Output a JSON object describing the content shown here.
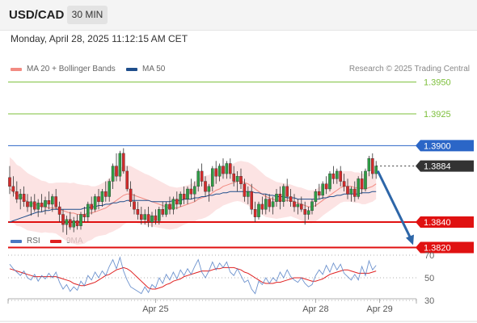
{
  "header": {
    "symbol": "USD/CAD",
    "timeframe": "30 MIN"
  },
  "datetime": "Monday, April 28, 2025 11:12:15 AM CET",
  "legend": {
    "main": [
      {
        "label": "MA 20 + Bollinger Bands",
        "color": "#f28b82"
      },
      {
        "label": "MA 50",
        "color": "#1f4e8c"
      }
    ],
    "rsi": [
      {
        "label": "RSI",
        "color": "#4a78c2"
      },
      {
        "label": "9MA",
        "color": "#e02020"
      }
    ]
  },
  "credit": "Research © 2025 Trading Central",
  "colors": {
    "up": "#2e9e45",
    "down": "#d42a2a",
    "resistance": "#2b66c7",
    "support": "#e01111",
    "target": "#7cbf3a",
    "current": "#333333",
    "arrow": "#2d66a8",
    "band": "#fbd9d9"
  },
  "chart_data": [
    {
      "type": "candlestick",
      "ylim": [
        1.38,
        1.3965
      ],
      "levels": [
        {
          "value": 1.395,
          "label": "1.3950",
          "kind": "target"
        },
        {
          "value": 1.3925,
          "label": "1.3925",
          "kind": "target"
        },
        {
          "value": 1.39,
          "label": "1.3900",
          "kind": "resistance"
        },
        {
          "value": 1.3884,
          "label": "1.3884",
          "kind": "current"
        },
        {
          "value": 1.384,
          "label": "1.3840",
          "kind": "support"
        },
        {
          "value": 1.382,
          "label": "1.3820",
          "kind": "support"
        }
      ],
      "x_ticks": [
        {
          "index": 41,
          "label": "Apr 25"
        },
        {
          "index": 86,
          "label": "Apr 28"
        },
        {
          "index": 104,
          "label": "Apr 29"
        }
      ],
      "candles": [
        [
          1.3875,
          1.3884,
          1.3862,
          1.3868
        ],
        [
          1.3868,
          1.3876,
          1.386,
          1.3864
        ],
        [
          1.3864,
          1.3872,
          1.3855,
          1.3858
        ],
        [
          1.3858,
          1.3866,
          1.385,
          1.3862
        ],
        [
          1.3862,
          1.3868,
          1.3852,
          1.3856
        ],
        [
          1.3856,
          1.3862,
          1.3848,
          1.3852
        ],
        [
          1.3852,
          1.386,
          1.3845,
          1.3856
        ],
        [
          1.3856,
          1.3862,
          1.3848,
          1.385
        ],
        [
          1.385,
          1.3858,
          1.3844,
          1.3855
        ],
        [
          1.3855,
          1.3862,
          1.3848,
          1.3852
        ],
        [
          1.3852,
          1.386,
          1.3846,
          1.3857
        ],
        [
          1.3857,
          1.3864,
          1.385,
          1.3854
        ],
        [
          1.3854,
          1.3862,
          1.3848,
          1.386
        ],
        [
          1.386,
          1.3866,
          1.385,
          1.3852
        ],
        [
          1.3852,
          1.3856,
          1.384,
          1.3846
        ],
        [
          1.3846,
          1.385,
          1.3832,
          1.3838
        ],
        [
          1.3838,
          1.3845,
          1.383,
          1.3842
        ],
        [
          1.3842,
          1.3848,
          1.3834,
          1.3836
        ],
        [
          1.3836,
          1.3844,
          1.3832,
          1.3841
        ],
        [
          1.3841,
          1.3846,
          1.3834,
          1.3837
        ],
        [
          1.3837,
          1.3848,
          1.3834,
          1.3846
        ],
        [
          1.3846,
          1.3852,
          1.384,
          1.3844
        ],
        [
          1.3844,
          1.3856,
          1.384,
          1.3854
        ],
        [
          1.3854,
          1.386,
          1.3846,
          1.385
        ],
        [
          1.385,
          1.3862,
          1.3848,
          1.386
        ],
        [
          1.386,
          1.3866,
          1.385,
          1.3856
        ],
        [
          1.3856,
          1.3866,
          1.3852,
          1.3864
        ],
        [
          1.3864,
          1.3872,
          1.3856,
          1.386
        ],
        [
          1.386,
          1.3874,
          1.3856,
          1.3872
        ],
        [
          1.3872,
          1.3886,
          1.3866,
          1.3884
        ],
        [
          1.3884,
          1.3894,
          1.3872,
          1.3876
        ],
        [
          1.3876,
          1.3896,
          1.3872,
          1.3894
        ],
        [
          1.3894,
          1.3898,
          1.3878,
          1.388
        ],
        [
          1.388,
          1.3884,
          1.3864,
          1.3866
        ],
        [
          1.3866,
          1.3872,
          1.3852,
          1.3856
        ],
        [
          1.3856,
          1.3862,
          1.3846,
          1.385
        ],
        [
          1.385,
          1.3856,
          1.3842,
          1.3846
        ],
        [
          1.3846,
          1.3852,
          1.3838,
          1.3842
        ],
        [
          1.3842,
          1.385,
          1.3838,
          1.3846
        ],
        [
          1.3846,
          1.3852,
          1.3836,
          1.384
        ],
        [
          1.384,
          1.3848,
          1.3836,
          1.3845
        ],
        [
          1.3845,
          1.385,
          1.3838,
          1.3841
        ],
        [
          1.3841,
          1.3852,
          1.3838,
          1.385
        ],
        [
          1.385,
          1.3856,
          1.3844,
          1.3846
        ],
        [
          1.3846,
          1.3856,
          1.3844,
          1.3854
        ],
        [
          1.3854,
          1.386,
          1.3846,
          1.385
        ],
        [
          1.385,
          1.386,
          1.3846,
          1.3858
        ],
        [
          1.3858,
          1.3864,
          1.385,
          1.3854
        ],
        [
          1.3854,
          1.3864,
          1.3852,
          1.3862
        ],
        [
          1.3862,
          1.3868,
          1.3854,
          1.3858
        ],
        [
          1.3858,
          1.3868,
          1.3854,
          1.3866
        ],
        [
          1.3866,
          1.3874,
          1.3858,
          1.3862
        ],
        [
          1.3862,
          1.3872,
          1.3856,
          1.3868
        ],
        [
          1.3868,
          1.3882,
          1.3864,
          1.388
        ],
        [
          1.388,
          1.3886,
          1.3868,
          1.3872
        ],
        [
          1.3872,
          1.3876,
          1.386,
          1.3864
        ],
        [
          1.3864,
          1.387,
          1.3856,
          1.3868
        ],
        [
          1.3868,
          1.3884,
          1.3864,
          1.3882
        ],
        [
          1.3882,
          1.3888,
          1.387,
          1.3876
        ],
        [
          1.3876,
          1.3886,
          1.3872,
          1.3884
        ],
        [
          1.3884,
          1.389,
          1.3874,
          1.3878
        ],
        [
          1.3878,
          1.3888,
          1.3874,
          1.3886
        ],
        [
          1.3886,
          1.389,
          1.3874,
          1.3878
        ],
        [
          1.3878,
          1.3884,
          1.3868,
          1.3872
        ],
        [
          1.3872,
          1.388,
          1.3864,
          1.3876
        ],
        [
          1.3876,
          1.3882,
          1.3866,
          1.387
        ],
        [
          1.387,
          1.3874,
          1.3856,
          1.386
        ],
        [
          1.386,
          1.3868,
          1.3854,
          1.3864
        ],
        [
          1.3864,
          1.387,
          1.3846,
          1.385
        ],
        [
          1.385,
          1.3856,
          1.384,
          1.3844
        ],
        [
          1.3844,
          1.3856,
          1.3842,
          1.3854
        ],
        [
          1.3854,
          1.386,
          1.3846,
          1.385
        ],
        [
          1.385,
          1.3862,
          1.3846,
          1.3858
        ],
        [
          1.3858,
          1.3862,
          1.3848,
          1.3852
        ],
        [
          1.3852,
          1.386,
          1.3846,
          1.3856
        ],
        [
          1.3856,
          1.3866,
          1.3852,
          1.3862
        ],
        [
          1.3862,
          1.3868,
          1.385,
          1.3856
        ],
        [
          1.3856,
          1.387,
          1.3852,
          1.3868
        ],
        [
          1.3868,
          1.3874,
          1.3856,
          1.386
        ],
        [
          1.386,
          1.3866,
          1.3852,
          1.3856
        ],
        [
          1.3856,
          1.3862,
          1.3848,
          1.3852
        ],
        [
          1.3852,
          1.3858,
          1.3846,
          1.3854
        ],
        [
          1.3854,
          1.386,
          1.3848,
          1.385
        ],
        [
          1.385,
          1.3856,
          1.3838,
          1.3846
        ],
        [
          1.3846,
          1.3852,
          1.3842,
          1.3849
        ],
        [
          1.3849,
          1.3858,
          1.3846,
          1.3856
        ],
        [
          1.3856,
          1.3866,
          1.3852,
          1.3864
        ],
        [
          1.3864,
          1.387,
          1.3858,
          1.3861
        ],
        [
          1.3861,
          1.3872,
          1.3858,
          1.387
        ],
        [
          1.387,
          1.3876,
          1.3862,
          1.3866
        ],
        [
          1.3866,
          1.388,
          1.3864,
          1.3878
        ],
        [
          1.3878,
          1.3884,
          1.387,
          1.3874
        ],
        [
          1.3874,
          1.3882,
          1.387,
          1.388
        ],
        [
          1.388,
          1.3884,
          1.3868,
          1.3872
        ],
        [
          1.3872,
          1.3878,
          1.3864,
          1.3868
        ],
        [
          1.3868,
          1.3874,
          1.3858,
          1.3862
        ],
        [
          1.3862,
          1.3868,
          1.3856,
          1.3866
        ],
        [
          1.3866,
          1.3872,
          1.3856,
          1.386
        ],
        [
          1.386,
          1.3876,
          1.3858,
          1.3874
        ],
        [
          1.3874,
          1.388,
          1.3862,
          1.3866
        ],
        [
          1.3866,
          1.3882,
          1.3864,
          1.388
        ],
        [
          1.388,
          1.3892,
          1.3876,
          1.389
        ],
        [
          1.389,
          1.3894,
          1.3874,
          1.3878
        ],
        [
          1.3878,
          1.3888,
          1.3874,
          1.3884
        ]
      ],
      "ma20": [
        1.3866,
        1.3864,
        1.3861,
        1.386,
        1.3858,
        1.3856,
        1.3855,
        1.3854,
        1.3853,
        1.3852,
        1.3852,
        1.3851,
        1.3851,
        1.3851,
        1.385,
        1.3849,
        1.3848,
        1.3847,
        1.3847,
        1.3846,
        1.3846,
        1.3846,
        1.3847,
        1.3847,
        1.3848,
        1.3849,
        1.385,
        1.3851,
        1.3853,
        1.3855,
        1.3857,
        1.3859,
        1.3861,
        1.3862,
        1.3862,
        1.3861,
        1.386,
        1.3859,
        1.3858,
        1.3857,
        1.3856,
        1.3855,
        1.3854,
        1.3853,
        1.3852,
        1.3851,
        1.3851,
        1.3851,
        1.3852,
        1.3853,
        1.3854,
        1.3855,
        1.3856,
        1.3858,
        1.3859,
        1.386,
        1.3861,
        1.3863,
        1.3865,
        1.3866,
        1.3868,
        1.3869,
        1.387,
        1.3871,
        1.3872,
        1.3872,
        1.3871,
        1.387,
        1.3868,
        1.3866,
        1.3864,
        1.3862,
        1.386,
        1.3859,
        1.3858,
        1.3857,
        1.3857,
        1.3857,
        1.3857,
        1.3857,
        1.3856,
        1.3855,
        1.3854,
        1.3853,
        1.3852,
        1.3852,
        1.3853,
        1.3855,
        1.3857,
        1.3859,
        1.3861,
        1.3863,
        1.3865,
        1.3867,
        1.3868,
        1.3868,
        1.3868,
        1.3867,
        1.3867,
        1.3866,
        1.3866,
        1.3867,
        1.3868,
        1.387
      ],
      "ma50": [
        1.384,
        1.3841,
        1.3842,
        1.3843,
        1.3844,
        1.3845,
        1.3846,
        1.3847,
        1.3848,
        1.3848,
        1.3849,
        1.3849,
        1.385,
        1.385,
        1.385,
        1.385,
        1.385,
        1.385,
        1.385,
        1.385,
        1.385,
        1.3851,
        1.3851,
        1.3852,
        1.3852,
        1.3853,
        1.3853,
        1.3854,
        1.3854,
        1.3855,
        1.3855,
        1.3856,
        1.3856,
        1.3857,
        1.3857,
        1.3857,
        1.3857,
        1.3857,
        1.3857,
        1.3857,
        1.3856,
        1.3856,
        1.3856,
        1.3856,
        1.3856,
        1.3856,
        1.3857,
        1.3857,
        1.3857,
        1.3858,
        1.3858,
        1.3858,
        1.3859,
        1.3859,
        1.386,
        1.386,
        1.3861,
        1.3861,
        1.3862,
        1.3862,
        1.3863,
        1.3863,
        1.3864,
        1.3864,
        1.3864,
        1.3864,
        1.3864,
        1.3864,
        1.3864,
        1.3863,
        1.3863,
        1.3862,
        1.3862,
        1.3861,
        1.3861,
        1.386,
        1.386,
        1.386,
        1.3859,
        1.3859,
        1.3859,
        1.3858,
        1.3858,
        1.3858,
        1.3858,
        1.3858,
        1.3858,
        1.3858,
        1.3859,
        1.3859,
        1.386,
        1.386,
        1.3861,
        1.3861,
        1.3862,
        1.3862,
        1.3862,
        1.3862,
        1.3862,
        1.3863,
        1.3863,
        1.3863,
        1.3864,
        1.3864
      ],
      "band_width": [
        0.005,
        0.0049,
        0.0048,
        0.0047,
        0.0046,
        0.0045,
        0.0044,
        0.0043,
        0.0042,
        0.0041,
        0.004,
        0.0039,
        0.0039,
        0.004,
        0.0042,
        0.0044,
        0.0046,
        0.0047,
        0.0048,
        0.0048,
        0.0047,
        0.0046,
        0.0044,
        0.0042,
        0.004,
        0.004,
        0.0041,
        0.0042,
        0.0043,
        0.0045,
        0.0046,
        0.0047,
        0.0046,
        0.0045,
        0.0044,
        0.0043,
        0.0042,
        0.0041,
        0.004,
        0.004,
        0.0039,
        0.0038,
        0.0037,
        0.0036,
        0.0035,
        0.0034,
        0.0033,
        0.0032,
        0.0031,
        0.003,
        0.003,
        0.003,
        0.0031,
        0.0032,
        0.0033,
        0.0033,
        0.0032,
        0.0032,
        0.0031,
        0.003,
        0.003,
        0.003,
        0.003,
        0.003,
        0.0031,
        0.0032,
        0.0033,
        0.0034,
        0.0035,
        0.0035,
        0.0034,
        0.0033,
        0.0032,
        0.0031,
        0.003,
        0.0029,
        0.0028,
        0.0027,
        0.0026,
        0.0025,
        0.0025,
        0.0025,
        0.0026,
        0.0026,
        0.0026,
        0.0026,
        0.0025,
        0.0025,
        0.0024,
        0.0024,
        0.0024,
        0.0024,
        0.0024,
        0.0024,
        0.0024,
        0.0024,
        0.0024,
        0.0024,
        0.0024,
        0.0024,
        0.0024,
        0.0024,
        0.0024,
        0.0024
      ],
      "forecast": {
        "from": 1.3884,
        "to": 1.382
      }
    },
    {
      "type": "line",
      "name": "RSI",
      "ylim": [
        20,
        80
      ],
      "y_ticks": [
        70,
        50,
        30
      ],
      "rsi": [
        62,
        58,
        55,
        52,
        56,
        50,
        48,
        53,
        47,
        52,
        49,
        54,
        50,
        55,
        46,
        40,
        44,
        38,
        42,
        39,
        47,
        43,
        52,
        48,
        55,
        50,
        56,
        52,
        60,
        66,
        58,
        68,
        56,
        48,
        42,
        40,
        38,
        36,
        42,
        37,
        44,
        41,
        50,
        45,
        53,
        48,
        55,
        49,
        57,
        52,
        58,
        53,
        60,
        66,
        55,
        50,
        56,
        64,
        57,
        63,
        59,
        64,
        55,
        52,
        58,
        52,
        46,
        48,
        40,
        36,
        47,
        44,
        50,
        45,
        50,
        47,
        55,
        50,
        57,
        51,
        48,
        46,
        50,
        45,
        42,
        44,
        52,
        57,
        53,
        61,
        55,
        63,
        57,
        62,
        54,
        51,
        48,
        53,
        48,
        60,
        52,
        65,
        57,
        61
      ],
      "ma9": [
        58,
        57,
        56,
        55,
        54,
        53,
        52,
        51,
        51,
        51,
        51,
        51,
        51,
        51,
        50,
        49,
        48,
        47,
        45,
        44,
        43,
        43,
        44,
        45,
        46,
        48,
        50,
        52,
        53,
        55,
        57,
        58,
        59,
        58,
        56,
        53,
        50,
        47,
        44,
        41,
        40,
        40,
        41,
        42,
        44,
        45,
        47,
        48,
        49,
        51,
        52,
        53,
        54,
        55,
        56,
        56,
        56,
        57,
        58,
        58,
        59,
        59,
        59,
        59,
        58,
        57,
        55,
        54,
        52,
        50,
        48,
        46,
        45,
        45,
        45,
        46,
        46,
        47,
        48,
        49,
        50,
        50,
        50,
        49,
        48,
        47,
        47,
        48,
        49,
        51,
        53,
        54,
        55,
        56,
        57,
        57,
        56,
        55,
        54,
        54,
        54,
        54,
        55,
        56
      ]
    }
  ]
}
